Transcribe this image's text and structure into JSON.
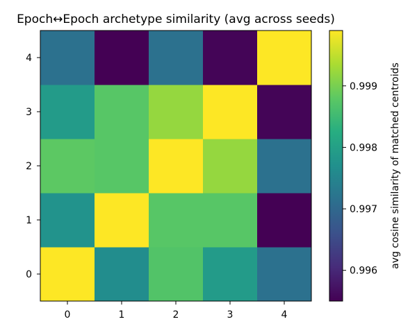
{
  "chart_data": {
    "type": "heatmap",
    "title": "Epoch↔Epoch archetype similarity (avg across seeds)",
    "xlabel": "",
    "ylabel": "",
    "x_categories": [
      "0",
      "1",
      "2",
      "3",
      "4"
    ],
    "y_categories": [
      "0",
      "1",
      "2",
      "3",
      "4"
    ],
    "values": [
      [
        0.9999,
        0.99765,
        0.9987,
        0.9979,
        0.99715
      ],
      [
        0.99775,
        0.9999,
        0.99875,
        0.99875,
        0.9955
      ],
      [
        0.9988,
        0.99875,
        0.9999,
        0.9992,
        0.99715
      ],
      [
        0.9979,
        0.99875,
        0.9992,
        0.9999,
        0.99555
      ],
      [
        0.99715,
        0.9955,
        0.99715,
        0.99555,
        0.9999
      ]
    ],
    "value_range": [
      0.9955,
      0.9999
    ],
    "colormap": "viridis",
    "grid": false,
    "colorbar": {
      "label": "avg cosine similarity of matched centroids",
      "ticks": [
        0.996,
        0.997,
        0.998,
        0.999
      ],
      "tick_labels": [
        "0.996",
        "0.997",
        "0.998",
        "0.999"
      ]
    }
  }
}
